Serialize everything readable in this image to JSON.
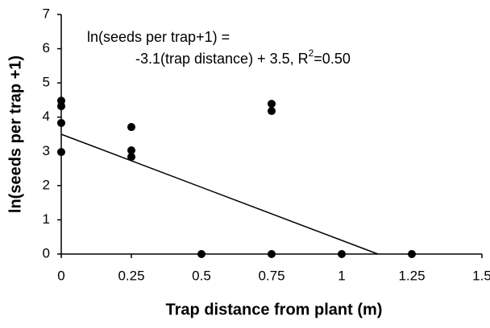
{
  "chart_data": {
    "type": "scatter",
    "x_label": "Trap distance from plant (m)",
    "y_label": "ln(seeds per trap +1)",
    "annotation": {
      "line1": "ln(seeds per trap+1) =",
      "line2": "-3.1(trap distance) + 3.5, R",
      "superscript": "2",
      "line2_end": "=0.50"
    },
    "fit": {
      "slope": -3.1,
      "intercept": 3.5,
      "color": "#000000"
    },
    "series": [
      {
        "color": "#000000",
        "x": [
          0,
          0,
          0,
          0,
          0.25,
          0.25,
          0.25,
          0.5,
          0.75,
          0.75,
          0.75,
          1,
          1.25
        ],
        "values": [
          4.48,
          4.32,
          3.83,
          2.98,
          3.71,
          3.03,
          2.84,
          0,
          4.39,
          4.18,
          0,
          0,
          0
        ]
      }
    ],
    "xlim": [
      0,
      1.5
    ],
    "ylim": [
      0,
      7
    ],
    "xticks": [
      0,
      0.25,
      0.5,
      0.75,
      1,
      1.25,
      1.5
    ],
    "yticks": [
      0,
      1,
      2,
      3,
      4,
      5,
      6,
      7
    ]
  }
}
